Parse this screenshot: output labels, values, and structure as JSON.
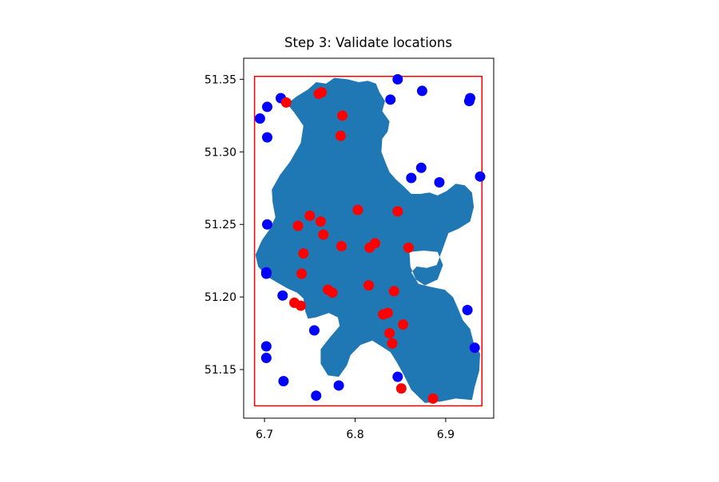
{
  "chart_data": {
    "type": "scatter",
    "title": "Step 3: Validate locations",
    "xlabel": "",
    "ylabel": "",
    "xlim": [
      6.677,
      6.953
    ],
    "ylim": [
      51.1165,
      51.3645
    ],
    "xticks": [
      6.7,
      6.8,
      6.9
    ],
    "xtick_labels": [
      "6.7",
      "6.8",
      "6.9"
    ],
    "yticks": [
      51.15,
      51.2,
      51.25,
      51.3,
      51.35
    ],
    "ytick_labels": [
      "51.15",
      "51.20",
      "51.25",
      "51.30",
      "51.35"
    ],
    "grid": false,
    "legend": "none",
    "bounding_box": {
      "x": [
        6.689,
        6.94
      ],
      "y": [
        51.125,
        51.352
      ],
      "color": "#ff0000"
    },
    "region": {
      "fill": "#1f77b4",
      "outline": [
        [
          6.69,
          51.229
        ],
        [
          6.697,
          51.239
        ],
        [
          6.706,
          51.247
        ],
        [
          6.712,
          51.255
        ],
        [
          6.709,
          51.265
        ],
        [
          6.708,
          51.274
        ],
        [
          6.717,
          51.284
        ],
        [
          6.728,
          51.293
        ],
        [
          6.74,
          51.306
        ],
        [
          6.743,
          51.318
        ],
        [
          6.733,
          51.327
        ],
        [
          6.725,
          51.333
        ],
        [
          6.735,
          51.338
        ],
        [
          6.748,
          51.343
        ],
        [
          6.757,
          51.348
        ],
        [
          6.768,
          51.347
        ],
        [
          6.777,
          51.351
        ],
        [
          6.792,
          51.35
        ],
        [
          6.804,
          51.348
        ],
        [
          6.814,
          51.349
        ],
        [
          6.823,
          51.347
        ],
        [
          6.827,
          51.341
        ],
        [
          6.833,
          51.335
        ],
        [
          6.83,
          51.328
        ],
        [
          6.838,
          51.321
        ],
        [
          6.836,
          51.314
        ],
        [
          6.83,
          51.309
        ],
        [
          6.829,
          51.3
        ],
        [
          6.834,
          51.292
        ],
        [
          6.838,
          51.286
        ],
        [
          6.845,
          51.281
        ],
        [
          6.854,
          51.276
        ],
        [
          6.862,
          51.271
        ],
        [
          6.872,
          51.271
        ],
        [
          6.882,
          51.272
        ],
        [
          6.891,
          51.27
        ],
        [
          6.901,
          51.273
        ],
        [
          6.911,
          51.278
        ],
        [
          6.921,
          51.277
        ],
        [
          6.929,
          51.272
        ],
        [
          6.931,
          51.262
        ],
        [
          6.927,
          51.252
        ],
        [
          6.914,
          51.247
        ],
        [
          6.903,
          51.244
        ],
        [
          6.896,
          51.232
        ],
        [
          6.89,
          51.222
        ],
        [
          6.879,
          51.22
        ],
        [
          6.868,
          51.221
        ],
        [
          6.862,
          51.217
        ],
        [
          6.87,
          51.209
        ],
        [
          6.883,
          51.207
        ],
        [
          6.899,
          51.205
        ],
        [
          6.908,
          51.2
        ],
        [
          6.913,
          51.193
        ],
        [
          6.919,
          51.184
        ],
        [
          6.927,
          51.178
        ],
        [
          6.931,
          51.168
        ],
        [
          6.938,
          51.161
        ],
        [
          6.937,
          51.149
        ],
        [
          6.932,
          51.138
        ],
        [
          6.929,
          51.129
        ],
        [
          6.911,
          51.13
        ],
        [
          6.895,
          51.128
        ],
        [
          6.877,
          51.127
        ],
        [
          6.862,
          51.136
        ],
        [
          6.854,
          51.146
        ],
        [
          6.846,
          51.155
        ],
        [
          6.839,
          51.162
        ],
        [
          6.829,
          51.166
        ],
        [
          6.819,
          51.17
        ],
        [
          6.806,
          51.167
        ],
        [
          6.795,
          51.16
        ],
        [
          6.791,
          51.153
        ],
        [
          6.782,
          51.145
        ],
        [
          6.77,
          51.146
        ],
        [
          6.762,
          51.154
        ],
        [
          6.762,
          51.164
        ],
        [
          6.772,
          51.172
        ],
        [
          6.783,
          51.18
        ],
        [
          6.781,
          51.186
        ],
        [
          6.771,
          51.189
        ],
        [
          6.757,
          51.186
        ],
        [
          6.748,
          51.185
        ],
        [
          6.745,
          51.19
        ],
        [
          6.743,
          51.199
        ],
        [
          6.736,
          51.203
        ],
        [
          6.725,
          51.206
        ],
        [
          6.714,
          51.21
        ],
        [
          6.703,
          51.214
        ],
        [
          6.693,
          51.221
        ]
      ],
      "lakes": [
        [
          [
            6.86,
            51.231
          ],
          [
            6.876,
            51.232
          ],
          [
            6.891,
            51.231
          ],
          [
            6.897,
            51.222
          ],
          [
            6.891,
            51.212
          ],
          [
            6.877,
            51.208
          ],
          [
            6.867,
            51.212
          ],
          [
            6.861,
            51.221
          ]
        ]
      ]
    },
    "series": [
      {
        "color": "#0000ff",
        "points": [
          [
            6.695,
            51.323
          ],
          [
            6.703,
            51.331
          ],
          [
            6.718,
            51.337
          ],
          [
            6.703,
            51.31
          ],
          [
            6.847,
            51.35
          ],
          [
            6.839,
            51.336
          ],
          [
            6.874,
            51.342
          ],
          [
            6.926,
            51.335
          ],
          [
            6.927,
            51.337
          ],
          [
            6.862,
            51.282
          ],
          [
            6.873,
            51.289
          ],
          [
            6.893,
            51.279
          ],
          [
            6.938,
            51.283
          ],
          [
            6.703,
            51.25
          ],
          [
            6.702,
            51.217
          ],
          [
            6.702,
            51.216
          ],
          [
            6.72,
            51.201
          ],
          [
            6.755,
            51.177
          ],
          [
            6.924,
            51.191
          ],
          [
            6.932,
            51.165
          ],
          [
            6.702,
            51.166
          ],
          [
            6.702,
            51.158
          ],
          [
            6.721,
            51.142
          ],
          [
            6.757,
            51.132
          ],
          [
            6.782,
            51.139
          ],
          [
            6.847,
            51.145
          ]
        ]
      },
      {
        "color": "#ff0000",
        "points": [
          [
            6.724,
            51.334
          ],
          [
            6.76,
            51.34
          ],
          [
            6.763,
            51.341
          ],
          [
            6.786,
            51.325
          ],
          [
            6.784,
            51.311
          ],
          [
            6.803,
            51.26
          ],
          [
            6.847,
            51.259
          ],
          [
            6.75,
            51.256
          ],
          [
            6.762,
            51.252
          ],
          [
            6.737,
            51.249
          ],
          [
            6.765,
            51.243
          ],
          [
            6.822,
            51.237
          ],
          [
            6.816,
            51.234
          ],
          [
            6.785,
            51.235
          ],
          [
            6.859,
            51.234
          ],
          [
            6.743,
            51.23
          ],
          [
            6.741,
            51.216
          ],
          [
            6.815,
            51.208
          ],
          [
            6.843,
            51.204
          ],
          [
            6.77,
            51.205
          ],
          [
            6.775,
            51.203
          ],
          [
            6.733,
            51.196
          ],
          [
            6.74,
            51.194
          ],
          [
            6.831,
            51.188
          ],
          [
            6.836,
            51.189
          ],
          [
            6.853,
            51.181
          ],
          [
            6.838,
            51.175
          ],
          [
            6.841,
            51.168
          ],
          [
            6.851,
            51.137
          ],
          [
            6.886,
            51.13
          ]
        ]
      }
    ]
  }
}
